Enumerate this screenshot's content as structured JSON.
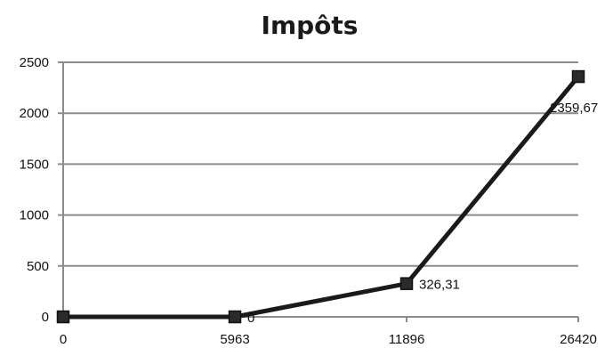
{
  "chart_data": {
    "type": "line",
    "title": "Impôts",
    "xlabel": "",
    "ylabel": "",
    "categories": [
      "0",
      "5963",
      "11896",
      "26420"
    ],
    "series": [
      {
        "values": [
          0,
          0,
          326.31,
          2359.67
        ],
        "data_labels": [
          "",
          "0",
          "326,31",
          "2359,67"
        ]
      }
    ],
    "ylim": [
      0,
      2500
    ],
    "y_ticks": [
      0,
      500,
      1000,
      1500,
      2000,
      2500
    ],
    "grid": true,
    "legend": "none",
    "colors": {
      "line": "#1a1a1a",
      "marker_fill": "#2a2a2a",
      "marker_stroke": "#111111",
      "gridline": "#8c8c8c",
      "axis": "#8c8c8c"
    }
  }
}
